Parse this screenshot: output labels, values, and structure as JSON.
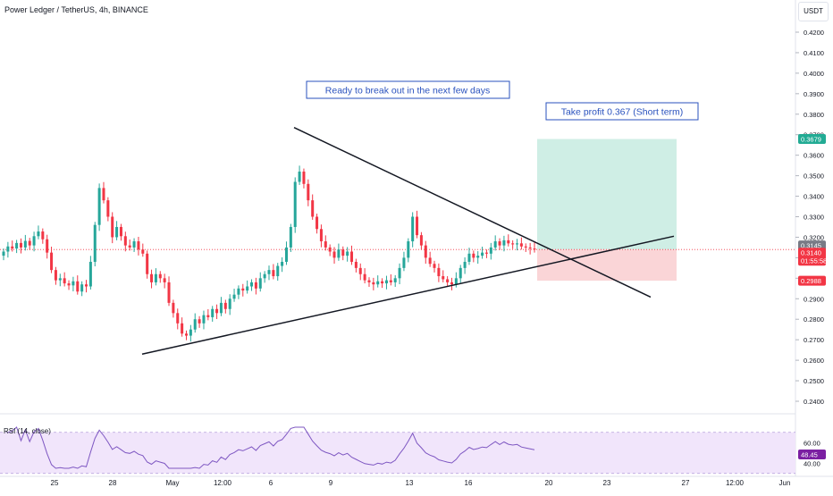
{
  "header": {
    "title": "Power Ledger / TetherUS, 4h, BINANCE",
    "currency": "USDT"
  },
  "price_axis": {
    "ticks": [
      "0.4200",
      "0.4100",
      "0.4000",
      "0.3900",
      "0.3800",
      "0.3700",
      "0.3600",
      "0.3500",
      "0.3400",
      "0.3300",
      "0.3200",
      "0.3100",
      "0.3000",
      "0.2900",
      "0.2800",
      "0.2700",
      "0.2600",
      "0.2500",
      "0.2400"
    ],
    "badges": {
      "take_profit": "0.3679",
      "current_price": "0.3145",
      "last_price": "0.3140",
      "countdown": "01:55:58",
      "stop_loss": "0.2988"
    }
  },
  "annotations": {
    "breakout": "Ready to break out in the next few days",
    "take_profit": "Take profit 0.367 (Short term)"
  },
  "rsi": {
    "label": "RSI (14, close)",
    "ticks": [
      "60.00",
      "40.00"
    ],
    "value": "48.45"
  },
  "time_axis": {
    "labels": [
      "25",
      "28",
      "May",
      "12:00",
      "6",
      "9",
      "13",
      "16",
      "20",
      "23",
      "27",
      "12:00",
      "Jun"
    ]
  },
  "colors": {
    "bull": "#26a69a",
    "bear": "#f23645",
    "rsi_line": "#7e57c2",
    "rsi_band": "#f1e5fb",
    "tp_zone": "#cfeee5",
    "sl_zone": "#fad5d7",
    "annotation": "#2a52be"
  },
  "chart_data": {
    "type": "candlestick",
    "symbol": "Power Ledger / TetherUS",
    "interval": "4h",
    "exchange": "BINANCE",
    "y_range": [
      0.235,
      0.425
    ],
    "closes": [
      0.313,
      0.3155,
      0.3145,
      0.3172,
      0.315,
      0.3182,
      0.316,
      0.3205,
      0.3228,
      0.319,
      0.3125,
      0.304,
      0.299,
      0.3,
      0.2975,
      0.2965,
      0.2985,
      0.2935,
      0.297,
      0.296,
      0.308,
      0.326,
      0.344,
      0.338,
      0.33,
      0.32,
      0.325,
      0.3205,
      0.316,
      0.315,
      0.318,
      0.314,
      0.312,
      0.302,
      0.298,
      0.302,
      0.3,
      0.298,
      0.288,
      0.283,
      0.278,
      0.273,
      0.272,
      0.275,
      0.28,
      0.278,
      0.282,
      0.281,
      0.285,
      0.283,
      0.288,
      0.285,
      0.29,
      0.292,
      0.295,
      0.294,
      0.296,
      0.298,
      0.295,
      0.3,
      0.302,
      0.304,
      0.301,
      0.306,
      0.308,
      0.315,
      0.325,
      0.347,
      0.352,
      0.346,
      0.338,
      0.33,
      0.324,
      0.318,
      0.315,
      0.313,
      0.31,
      0.314,
      0.311,
      0.313,
      0.308,
      0.305,
      0.302,
      0.299,
      0.298,
      0.297,
      0.2985,
      0.2975,
      0.299,
      0.298,
      0.3,
      0.305,
      0.31,
      0.318,
      0.33,
      0.321,
      0.316,
      0.31,
      0.307,
      0.305,
      0.301,
      0.2995,
      0.298,
      0.297,
      0.3,
      0.305,
      0.308,
      0.312,
      0.31,
      0.311,
      0.3125,
      0.312,
      0.315,
      0.318,
      0.316,
      0.3185,
      0.317,
      0.3165,
      0.317,
      0.3155,
      0.315,
      0.3145,
      0.314
    ],
    "take_profit": 0.3679,
    "entry": 0.314,
    "stop_loss": 0.2988,
    "rsi_period": 14,
    "rsi_last": 48.45,
    "rsi_range": [
      35,
      75
    ]
  }
}
